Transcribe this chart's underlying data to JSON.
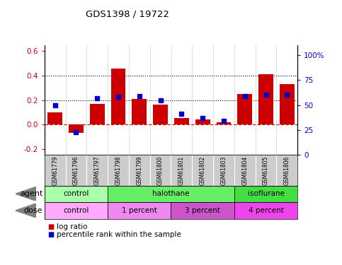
{
  "title": "GDS1398 / 19722",
  "samples": [
    "GSM61779",
    "GSM61796",
    "GSM61797",
    "GSM61798",
    "GSM61799",
    "GSM61800",
    "GSM61801",
    "GSM61802",
    "GSM61803",
    "GSM61804",
    "GSM61805",
    "GSM61806"
  ],
  "log_ratio": [
    0.1,
    -0.07,
    0.17,
    0.46,
    0.21,
    0.16,
    0.05,
    0.04,
    0.02,
    0.25,
    0.41,
    0.33
  ],
  "percentile_rank": [
    50,
    23,
    57,
    58,
    59,
    55,
    41,
    37,
    34,
    59,
    60,
    60
  ],
  "bar_color": "#cc0000",
  "dot_color": "#0000cc",
  "ylim_left": [
    -0.25,
    0.65
  ],
  "ylim_right": [
    0,
    110
  ],
  "yticks_left": [
    -0.2,
    0.0,
    0.2,
    0.4,
    0.6
  ],
  "yticks_right": [
    0,
    25,
    50,
    75,
    100
  ],
  "ytick_labels_right": [
    "0",
    "25",
    "50",
    "75",
    "100%"
  ],
  "hlines_dotted": [
    0.2,
    0.4
  ],
  "hline_dashdot": 0.0,
  "agent_groups": [
    {
      "label": "control",
      "start": 0,
      "end": 3,
      "color": "#aaffaa"
    },
    {
      "label": "halothane",
      "start": 3,
      "end": 9,
      "color": "#66ee66"
    },
    {
      "label": "isoflurane",
      "start": 9,
      "end": 12,
      "color": "#44dd44"
    }
  ],
  "dose_groups": [
    {
      "label": "control",
      "start": 0,
      "end": 3,
      "color": "#ffaaff"
    },
    {
      "label": "1 percent",
      "start": 3,
      "end": 6,
      "color": "#ee88ee"
    },
    {
      "label": "3 percent",
      "start": 6,
      "end": 9,
      "color": "#cc55cc"
    },
    {
      "label": "4 percent",
      "start": 9,
      "end": 12,
      "color": "#ee44ee"
    }
  ],
  "legend_bar_label": "log ratio",
  "legend_dot_label": "percentile rank within the sample",
  "background_color": "#ffffff",
  "bar_color_hex": "#cc0000",
  "dot_color_hex": "#0000cc",
  "agent_label": "agent",
  "dose_label": "dose",
  "sample_bg": "#cccccc"
}
